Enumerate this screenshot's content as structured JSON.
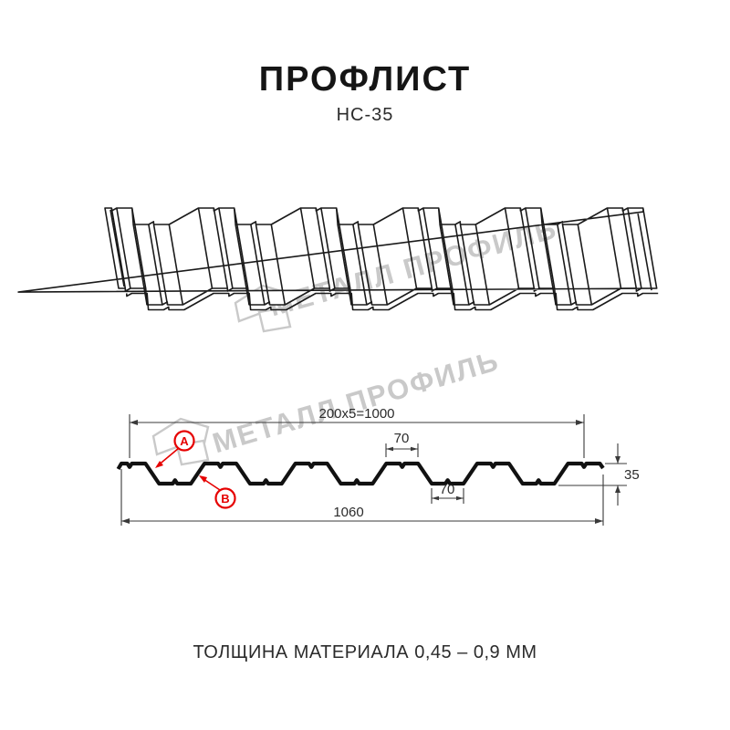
{
  "header": {
    "title": "ПРОФЛИСТ",
    "subtitle": "НС-35"
  },
  "watermark": {
    "text": "МЕТАЛЛ ПРОФИЛЬ",
    "color": "#c9c9c9"
  },
  "diagram": {
    "dims": {
      "pitch": "200x5=1000",
      "flange_top": "70",
      "flange_bottom": "70",
      "height": "35",
      "width_total": "1060"
    },
    "markers": {
      "a": "A",
      "b": "B"
    },
    "colors": {
      "accent_red": "#e60000",
      "line_black": "#1a1a1a",
      "watermark_gray": "#c9c9c9"
    }
  },
  "footer": {
    "note": "ТОЛЩИНА МАТЕРИАЛА 0,45 – 0,9 ММ"
  }
}
